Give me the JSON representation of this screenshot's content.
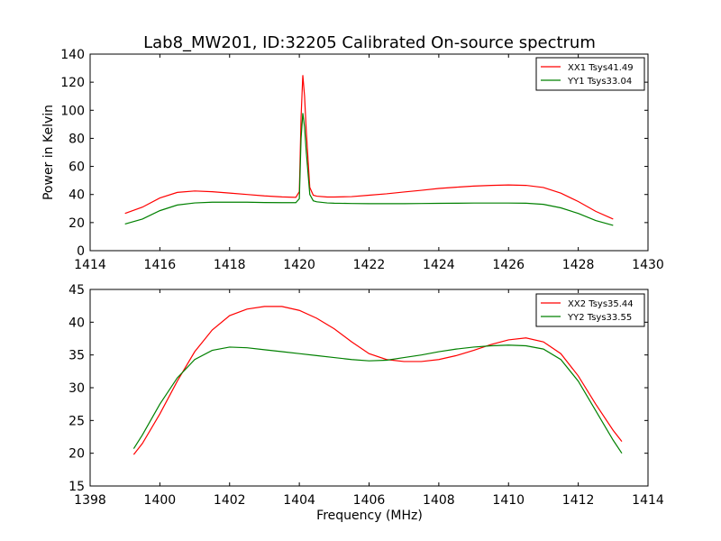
{
  "chart_data": [
    {
      "type": "line",
      "title": "Lab8_MW201, ID:32205 Calibrated On-source spectrum",
      "xlabel": "",
      "ylabel": "Power in Kelvin",
      "xlim": [
        1414,
        1430
      ],
      "ylim": [
        0,
        140
      ],
      "xticks": [
        "1414",
        "1416",
        "1418",
        "1420",
        "1422",
        "1424",
        "1426",
        "1428",
        "1430"
      ],
      "yticks": [
        "0",
        "20",
        "40",
        "60",
        "80",
        "100",
        "120",
        "140"
      ],
      "legend_position": "top-right",
      "series": [
        {
          "name": "XX1 Tsys41.49",
          "color": "#ff0000",
          "x": [
            1415.0,
            1415.5,
            1416.0,
            1416.5,
            1417.0,
            1417.5,
            1418.0,
            1418.5,
            1419.0,
            1419.5,
            1419.9,
            1420.0,
            1420.05,
            1420.1,
            1420.15,
            1420.2,
            1420.3,
            1420.4,
            1420.5,
            1420.8,
            1421.0,
            1421.5,
            1422.0,
            1422.5,
            1423.0,
            1423.5,
            1424.0,
            1424.5,
            1425.0,
            1425.5,
            1426.0,
            1426.5,
            1427.0,
            1427.5,
            1428.0,
            1428.5,
            1429.0
          ],
          "values": [
            26.5,
            31.0,
            37.5,
            41.5,
            42.5,
            42.0,
            41.0,
            40.0,
            39.0,
            38.3,
            38.0,
            42.0,
            95.0,
            125.0,
            110.0,
            85.0,
            45.0,
            39.5,
            38.8,
            38.2,
            38.2,
            38.5,
            39.5,
            40.5,
            41.8,
            43.0,
            44.3,
            45.2,
            46.0,
            46.5,
            46.8,
            46.5,
            45.0,
            41.0,
            35.0,
            28.0,
            22.5
          ]
        },
        {
          "name": "YY1 Tsys33.04",
          "color": "#008000",
          "x": [
            1415.0,
            1415.5,
            1416.0,
            1416.5,
            1417.0,
            1417.5,
            1418.0,
            1418.5,
            1419.0,
            1419.5,
            1419.9,
            1420.0,
            1420.05,
            1420.1,
            1420.15,
            1420.2,
            1420.3,
            1420.4,
            1420.5,
            1420.8,
            1421.0,
            1421.5,
            1422.0,
            1422.5,
            1423.0,
            1423.5,
            1424.0,
            1424.5,
            1425.0,
            1425.5,
            1426.0,
            1426.5,
            1427.0,
            1427.5,
            1428.0,
            1428.5,
            1429.0
          ],
          "values": [
            19.0,
            22.5,
            28.5,
            32.5,
            34.0,
            34.5,
            34.5,
            34.5,
            34.3,
            34.2,
            34.2,
            37.0,
            80.0,
            98.0,
            88.0,
            70.0,
            40.0,
            35.5,
            34.8,
            34.0,
            33.8,
            33.6,
            33.5,
            33.5,
            33.5,
            33.6,
            33.7,
            33.8,
            33.9,
            33.9,
            33.9,
            33.8,
            33.0,
            30.5,
            26.5,
            21.5,
            18.0
          ]
        }
      ]
    },
    {
      "type": "line",
      "title": "",
      "xlabel": "Frequency (MHz)",
      "ylabel": "",
      "xlim": [
        1398,
        1414
      ],
      "ylim": [
        15,
        45
      ],
      "xticks": [
        "1398",
        "1400",
        "1402",
        "1404",
        "1406",
        "1408",
        "1410",
        "1412",
        "1414"
      ],
      "yticks": [
        "15",
        "20",
        "25",
        "30",
        "35",
        "40",
        "45"
      ],
      "legend_position": "top-right",
      "series": [
        {
          "name": "XX2 Tsys35.44",
          "color": "#ff0000",
          "x": [
            1399.25,
            1399.5,
            1400.0,
            1400.5,
            1401.0,
            1401.5,
            1402.0,
            1402.5,
            1403.0,
            1403.5,
            1404.0,
            1404.5,
            1405.0,
            1405.5,
            1406.0,
            1406.5,
            1407.0,
            1407.5,
            1408.0,
            1408.5,
            1409.0,
            1409.5,
            1410.0,
            1410.5,
            1411.0,
            1411.5,
            1412.0,
            1412.5,
            1413.0,
            1413.25
          ],
          "values": [
            19.8,
            21.5,
            26.0,
            31.0,
            35.5,
            38.8,
            41.0,
            42.0,
            42.4,
            42.4,
            41.8,
            40.6,
            39.0,
            37.0,
            35.2,
            34.3,
            34.0,
            34.0,
            34.3,
            34.9,
            35.7,
            36.6,
            37.3,
            37.6,
            37.0,
            35.2,
            31.8,
            27.5,
            23.5,
            21.8
          ]
        },
        {
          "name": "YY2 Tsys33.55",
          "color": "#008000",
          "x": [
            1399.25,
            1399.5,
            1400.0,
            1400.5,
            1401.0,
            1401.5,
            1402.0,
            1402.5,
            1403.0,
            1403.5,
            1404.0,
            1404.5,
            1405.0,
            1405.5,
            1406.0,
            1406.5,
            1407.0,
            1407.5,
            1408.0,
            1408.5,
            1409.0,
            1409.5,
            1410.0,
            1410.5,
            1411.0,
            1411.5,
            1412.0,
            1412.5,
            1413.0,
            1413.25
          ],
          "values": [
            20.7,
            22.8,
            27.5,
            31.5,
            34.3,
            35.7,
            36.2,
            36.1,
            35.8,
            35.5,
            35.2,
            34.9,
            34.6,
            34.3,
            34.1,
            34.2,
            34.6,
            35.0,
            35.5,
            35.9,
            36.2,
            36.4,
            36.5,
            36.4,
            35.9,
            34.3,
            31.0,
            26.5,
            22.0,
            20.0
          ]
        }
      ]
    }
  ]
}
